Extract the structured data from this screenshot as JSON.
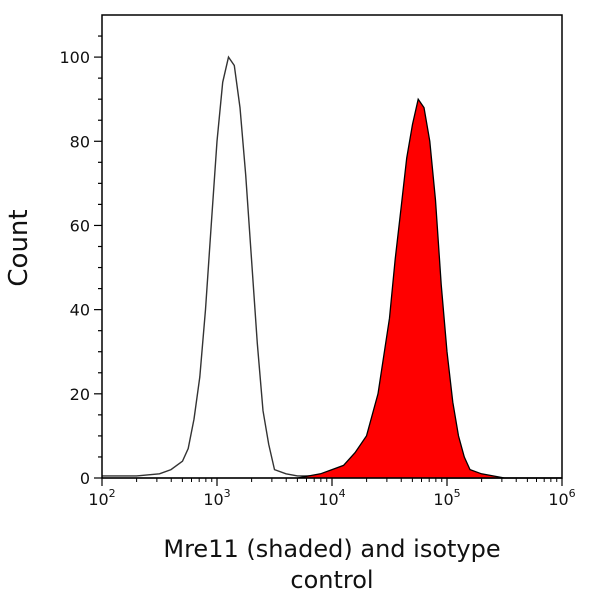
{
  "chart_data": {
    "type": "area",
    "title": "",
    "xlabel_line1": "Mre11 (shaded) and isotype",
    "xlabel_line2": "control",
    "ylabel": "Count",
    "x_scale": "log10",
    "xlim": [
      100,
      1000000
    ],
    "ylim": [
      0,
      110
    ],
    "x_ticks": [
      {
        "base": "10",
        "exp": "2",
        "value": 100
      },
      {
        "base": "10",
        "exp": "3",
        "value": 1000
      },
      {
        "base": "10",
        "exp": "4",
        "value": 10000
      },
      {
        "base": "10",
        "exp": "5",
        "value": 100000
      },
      {
        "base": "10",
        "exp": "6",
        "value": 1000000
      }
    ],
    "y_ticks": [
      "0",
      "20",
      "40",
      "60",
      "80",
      "100"
    ],
    "grid": false,
    "series": [
      {
        "style": "outline",
        "color": "#333333",
        "x": [
          100,
          200,
          316,
          398,
          501,
          562,
          631,
          708,
          794,
          891,
          1000,
          1122,
          1259,
          1413,
          1585,
          1778,
          1995,
          2239,
          2512,
          2818,
          3162,
          3981,
          5012,
          7943,
          10000,
          100000,
          1000000
        ],
        "y": [
          0.5,
          0.5,
          1,
          2,
          4,
          7,
          14,
          24,
          40,
          60,
          80,
          94,
          100,
          98,
          88,
          72,
          52,
          32,
          16,
          8,
          2,
          1,
          0.5,
          0.5,
          0.5,
          0,
          0
        ]
      },
      {
        "style": "filled",
        "color": "#ff0000",
        "outline": "#000000",
        "x": [
          100,
          5012,
          7943,
          10000,
          12589,
          15849,
          19953,
          25119,
          31623,
          35481,
          39811,
          44668,
          50119,
          56234,
          63096,
          70795,
          79433,
          89125,
          100000,
          112202,
          125893,
          141254,
          158489,
          199526,
          251189,
          316228,
          1000000
        ],
        "y": [
          0,
          0,
          1,
          2,
          3,
          6,
          10,
          20,
          38,
          52,
          64,
          76,
          84,
          90,
          88,
          80,
          66,
          46,
          30,
          18,
          10,
          5,
          2,
          1,
          0.5,
          0,
          0
        ]
      }
    ]
  }
}
